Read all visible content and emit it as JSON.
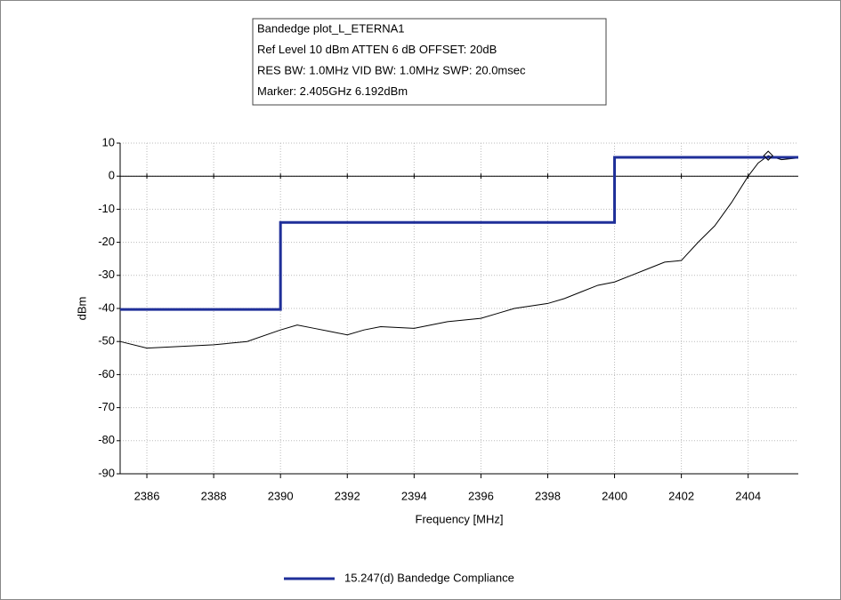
{
  "chart_data": {
    "type": "line",
    "annotations": [
      "Bandedge plot_L_ETERNA1",
      "Ref Level 10 dBm    ATTEN 6 dB    OFFSET: 20dB",
      "RES BW: 1.0MHz  VID BW: 1.0MHz  SWP: 20.0msec",
      "Marker: 2.405GHz  6.192dBm"
    ],
    "x_label": "Frequency [MHz]",
    "y_label": "dBm",
    "xlim": [
      2385.2,
      2405.5
    ],
    "xticks": [
      2386,
      2388,
      2390,
      2392,
      2394,
      2396,
      2398,
      2400,
      2402,
      2404
    ],
    "ylim": [
      -90,
      10
    ],
    "yticks": [
      -90,
      -80,
      -70,
      -60,
      -50,
      -40,
      -30,
      -20,
      -10,
      0,
      10
    ],
    "grid": true,
    "legend": "bottom",
    "marker": {
      "x": 2404.6,
      "y": 6.2
    },
    "series": [
      {
        "color": "#000000",
        "x": [
          2385.2,
          2386,
          2387,
          2388,
          2389,
          2390,
          2390.5,
          2391,
          2391.5,
          2392,
          2392.5,
          2393,
          2394,
          2394.5,
          2395,
          2396,
          2396.5,
          2397,
          2398,
          2398.5,
          2399,
          2399.5,
          2400,
          2400.5,
          2401,
          2401.5,
          2402,
          2402.5,
          2403,
          2403.5,
          2404,
          2404.3,
          2404.6,
          2405,
          2405.5
        ],
        "values": [
          -50,
          -52,
          -51.5,
          -51,
          -50,
          -46.5,
          -45,
          -46,
          -47,
          -48,
          -46.5,
          -45.5,
          -46,
          -45,
          -44,
          -43,
          -41.5,
          -40,
          -38.5,
          -37,
          -35,
          -33,
          -32,
          -30,
          -28,
          -26,
          -25.5,
          -20,
          -15,
          -8,
          0,
          4,
          6.2,
          5,
          5.5
        ]
      },
      {
        "name": "15.247(d) Bandedge Compliance",
        "color": "#1f2f99",
        "x": [
          2385.2,
          2390,
          2390,
          2400,
          2400,
          2405.5
        ],
        "values": [
          -40.3,
          -40.3,
          -14,
          -14,
          5.7,
          5.7
        ]
      }
    ]
  }
}
